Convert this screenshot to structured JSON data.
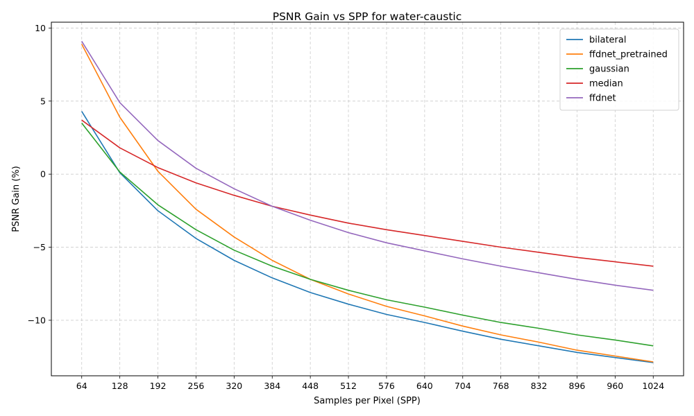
{
  "chart_data": {
    "type": "line",
    "title": "PSNR Gain vs SPP for water-caustic",
    "xlabel": "Samples per Pixel (SPP)",
    "ylabel": "PSNR Gain (%)",
    "x": [
      64,
      128,
      192,
      256,
      320,
      384,
      448,
      512,
      576,
      640,
      704,
      768,
      832,
      896,
      960,
      1024
    ],
    "xlim": [
      13,
      1075
    ],
    "ylim": [
      -13.8,
      10.4
    ],
    "yticks": [
      10,
      5,
      0,
      -5,
      -10
    ],
    "ytick_labels": [
      "10",
      "5",
      "0",
      "−5",
      "−10"
    ],
    "grid": true,
    "legend_position": "top-right",
    "series": [
      {
        "name": "bilateral",
        "color": "#1f77b4",
        "values": [
          4.3,
          0.1,
          -2.5,
          -4.4,
          -5.9,
          -7.1,
          -8.1,
          -8.9,
          -9.6,
          -10.15,
          -10.75,
          -11.3,
          -11.75,
          -12.2,
          -12.55,
          -12.9
        ]
      },
      {
        "name": "ffdnet_pretrained",
        "color": "#ff7f0e",
        "values": [
          8.9,
          3.9,
          0.2,
          -2.4,
          -4.3,
          -5.9,
          -7.2,
          -8.2,
          -9.05,
          -9.7,
          -10.4,
          -11.0,
          -11.5,
          -12.05,
          -12.45,
          -12.85
        ]
      },
      {
        "name": "gaussian",
        "color": "#2ca02c",
        "values": [
          3.5,
          0.15,
          -2.1,
          -3.8,
          -5.2,
          -6.3,
          -7.2,
          -7.95,
          -8.6,
          -9.1,
          -9.65,
          -10.15,
          -10.55,
          -11.0,
          -11.35,
          -11.75
        ]
      },
      {
        "name": "median",
        "color": "#d62728",
        "values": [
          3.7,
          1.8,
          0.45,
          -0.6,
          -1.45,
          -2.2,
          -2.8,
          -3.35,
          -3.8,
          -4.2,
          -4.6,
          -5.0,
          -5.35,
          -5.7,
          -6.0,
          -6.3
        ]
      },
      {
        "name": "ffdnet",
        "color": "#9467bd",
        "values": [
          9.1,
          4.9,
          2.3,
          0.4,
          -1.0,
          -2.2,
          -3.15,
          -4.0,
          -4.7,
          -5.25,
          -5.8,
          -6.3,
          -6.75,
          -7.2,
          -7.6,
          -7.95
        ]
      }
    ]
  }
}
